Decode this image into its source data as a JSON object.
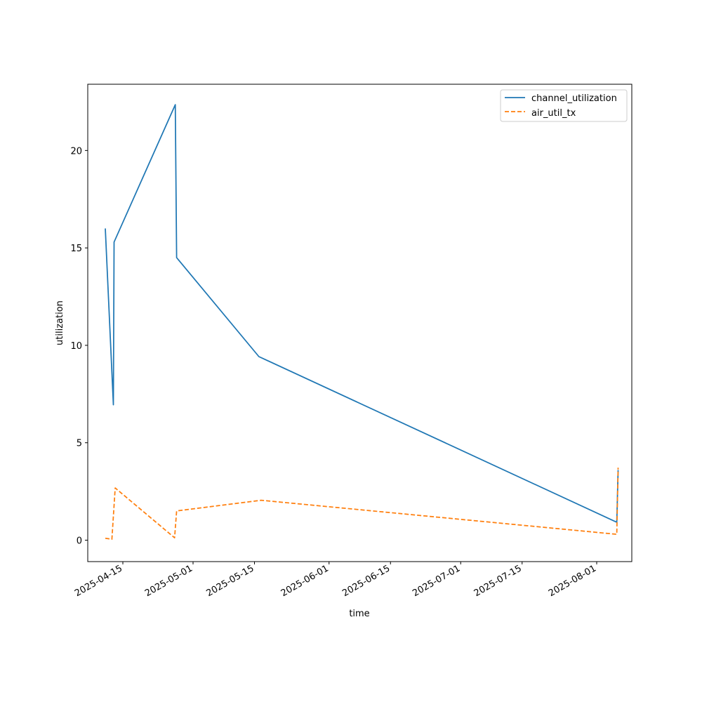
{
  "chart_data": {
    "type": "line",
    "title": "",
    "xlabel": "time",
    "ylabel": "utilization",
    "x_type": "date",
    "xlim": [
      "2025-04-07",
      "2025-08-09"
    ],
    "ylim": [
      -1.1,
      23.4
    ],
    "x_ticks": [
      "2025-04-15",
      "2025-05-01",
      "2025-05-15",
      "2025-06-01",
      "2025-06-15",
      "2025-07-01",
      "2025-07-15",
      "2025-08-01"
    ],
    "y_ticks": [
      0,
      5,
      10,
      15,
      20
    ],
    "grid": false,
    "legend_position": "top-right",
    "series": [
      {
        "name": "channel_utilization",
        "color": "#1f77b4",
        "line_style": "solid",
        "points": [
          {
            "x": "2025-04-11",
            "y": 16.0
          },
          {
            "x": "2025-04-12 20:00",
            "y": 6.95
          },
          {
            "x": "2025-04-13",
            "y": 15.3
          },
          {
            "x": "2025-04-26 23:00",
            "y": 22.35
          },
          {
            "x": "2025-04-27 06:00",
            "y": 14.5
          },
          {
            "x": "2025-05-16",
            "y": 9.42
          },
          {
            "x": "2025-08-05 14:00",
            "y": 0.92
          },
          {
            "x": "2025-08-05 21:00",
            "y": 3.6
          }
        ]
      },
      {
        "name": "air_util_tx",
        "color": "#ff7f0e",
        "line_style": "dashed",
        "points": [
          {
            "x": "2025-04-11",
            "y": 0.1
          },
          {
            "x": "2025-04-12 12:00",
            "y": 0.05
          },
          {
            "x": "2025-04-13 06:00",
            "y": 2.68
          },
          {
            "x": "2025-04-26 19:00",
            "y": 0.12
          },
          {
            "x": "2025-04-27 06:00",
            "y": 1.5
          },
          {
            "x": "2025-05-16 12:00",
            "y": 2.05
          },
          {
            "x": "2025-08-05 14:00",
            "y": 0.3
          },
          {
            "x": "2025-08-05 21:00",
            "y": 3.72
          }
        ]
      }
    ]
  }
}
